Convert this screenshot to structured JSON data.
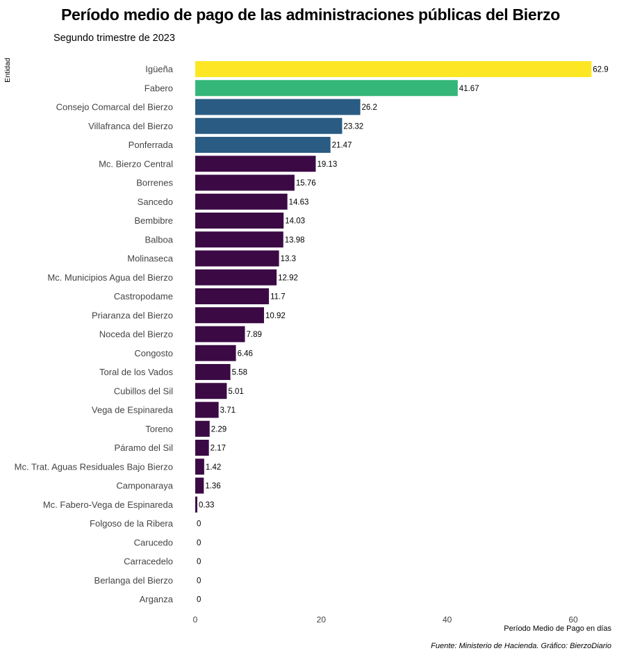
{
  "chart_data": {
    "type": "bar",
    "orientation": "horizontal",
    "title": "Período medio de pago de las administraciones públicas del Bierzo",
    "subtitle": "Segundo trimestre de 2023",
    "ylabel": "Entidad",
    "xlabel": "Período Medio de Pago en días",
    "caption": "Fuente: Ministerio de Hacienda. Gráfico: BierzoDiario",
    "xlim": [
      0,
      63
    ],
    "xticks": [
      "0",
      "20",
      "40",
      "60"
    ],
    "grid": false,
    "categories": [
      "Igüeña",
      "Fabero",
      "Consejo Comarcal del Bierzo",
      "Villafranca del Bierzo",
      "Ponferrada",
      "Mc. Bierzo Central",
      "Borrenes",
      "Sancedo",
      "Bembibre",
      "Balboa",
      "Molinaseca",
      "Mc. Municipios Agua del Bierzo",
      "Castropodame",
      "Priaranza del Bierzo",
      "Noceda del Bierzo",
      "Congosto",
      "Toral de los Vados",
      "Cubillos del Sil",
      "Vega de Espinareda",
      "Toreno",
      "Páramo del Sil",
      "Mc. Trat. Aguas Residuales Bajo Bierzo",
      "Camponaraya",
      "Mc. Fabero-Vega de Espinareda",
      "Folgoso de la Ribera",
      "Carucedo",
      "Carracedelo",
      "Berlanga del Bierzo",
      "Arganza"
    ],
    "values": [
      62.9,
      41.67,
      26.2,
      23.32,
      21.47,
      19.13,
      15.76,
      14.63,
      14.03,
      13.98,
      13.3,
      12.92,
      11.7,
      10.92,
      7.89,
      6.46,
      5.58,
      5.01,
      3.71,
      2.29,
      2.17,
      1.42,
      1.36,
      0.33,
      0,
      0,
      0,
      0,
      0
    ],
    "value_labels": [
      "62.9",
      "41.67",
      "26.2",
      "23.32",
      "21.47",
      "19.13",
      "15.76",
      "14.63",
      "14.03",
      "13.98",
      "13.3",
      "12.92",
      "11.7",
      "10.92",
      "7.89",
      "6.46",
      "5.58",
      "5.01",
      "3.71",
      "2.29",
      "2.17",
      "1.42",
      "1.36",
      "0.33",
      "0",
      "0",
      "0",
      "0",
      "0"
    ],
    "colors": {
      "yellow": "#fde725",
      "green": "#35b779",
      "blue": "#31688e",
      "purple": "#3b0a45"
    },
    "bar_colors": [
      "#fde725",
      "#35b779",
      "#2a5b82",
      "#2a5b82",
      "#2a5b82",
      "#3b0a45",
      "#3b0a45",
      "#3b0a45",
      "#3b0a45",
      "#3b0a45",
      "#3b0a45",
      "#3b0a45",
      "#3b0a45",
      "#3b0a45",
      "#3b0a45",
      "#3b0a45",
      "#3b0a45",
      "#3b0a45",
      "#3b0a45",
      "#3b0a45",
      "#3b0a45",
      "#3b0a45",
      "#3b0a45",
      "#3b0a45",
      "#3b0a45",
      "#3b0a45",
      "#3b0a45",
      "#3b0a45",
      "#3b0a45"
    ]
  }
}
